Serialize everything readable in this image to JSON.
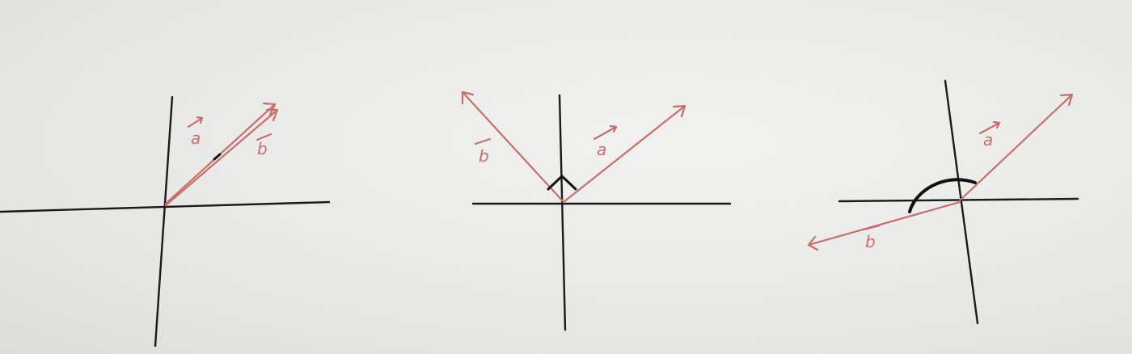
{
  "figures": [
    {
      "id": "parallel",
      "labels": {
        "a": "a",
        "b": "b"
      }
    },
    {
      "id": "perpendicular",
      "labels": {
        "a": "a",
        "b": "b"
      }
    },
    {
      "id": "antiparallel-obtuse",
      "labels": {
        "a": "a",
        "b": "b"
      }
    }
  ],
  "colors": {
    "vector": "#c76f6c",
    "axis": "#1a1a1a",
    "paper": "#ececea"
  }
}
